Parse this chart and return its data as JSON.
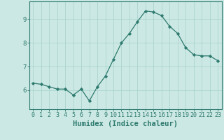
{
  "xlabel": "Humidex (Indice chaleur)",
  "x_values": [
    0,
    1,
    2,
    3,
    4,
    5,
    6,
    7,
    8,
    9,
    10,
    11,
    12,
    13,
    14,
    15,
    16,
    17,
    18,
    19,
    20,
    21,
    22,
    23
  ],
  "y_values": [
    6.3,
    6.25,
    6.15,
    6.05,
    6.05,
    5.8,
    6.05,
    5.55,
    6.15,
    6.6,
    7.3,
    8.0,
    8.4,
    8.9,
    9.35,
    9.3,
    9.15,
    8.7,
    8.4,
    7.8,
    7.5,
    7.45,
    7.45,
    7.25
  ],
  "line_color": "#2d7a6e",
  "marker": "D",
  "marker_size": 2.2,
  "background_color": "#cce8e4",
  "grid_color": "#aad4cf",
  "ylim": [
    5.2,
    9.75
  ],
  "yticks": [
    6,
    7,
    8,
    9
  ],
  "label_fontsize": 6.5,
  "tick_fontsize": 6.0,
  "xlabel_fontsize": 7.5
}
